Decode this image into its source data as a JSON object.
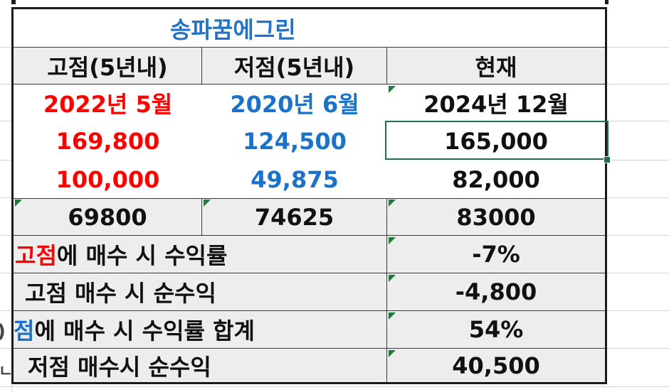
{
  "sheet": {
    "title": "송파꿈에그린",
    "headers": [
      "고점(5년내)",
      "저점(5년내)",
      "현재"
    ],
    "dates": [
      "2022년 5월",
      "2020년 6월",
      "2024년 12월"
    ],
    "row_prices": [
      "169,800",
      "124,500",
      "165,000"
    ],
    "row_second": [
      "100,000",
      "49,875",
      "82,000"
    ],
    "row_diff": [
      "69800",
      "74625",
      "83000"
    ],
    "summary": [
      {
        "label_prefix": "고점",
        "label_suffix": "에 매수 시 수익률",
        "value": "-7%"
      },
      {
        "label": "고점 매수 시 순수익",
        "value": "-4,800"
      },
      {
        "label_prefix": "점",
        "label_suffix": "에 매수 시 수익률 합계",
        "value": "54%"
      },
      {
        "label": "저점 매수시 순수익",
        "value": "40,500"
      }
    ],
    "left_edge_glyphs": [
      "",
      "",
      "",
      "",
      "",
      "",
      "",
      "",
      ")",
      "ㄴ"
    ]
  },
  "colors": {
    "high": "#ff0000",
    "low": "#1a73c9",
    "title": "#1f73c8",
    "header_bg": "#ededed",
    "selection": "#1e7145",
    "error_marker": "#1e7b3a"
  }
}
